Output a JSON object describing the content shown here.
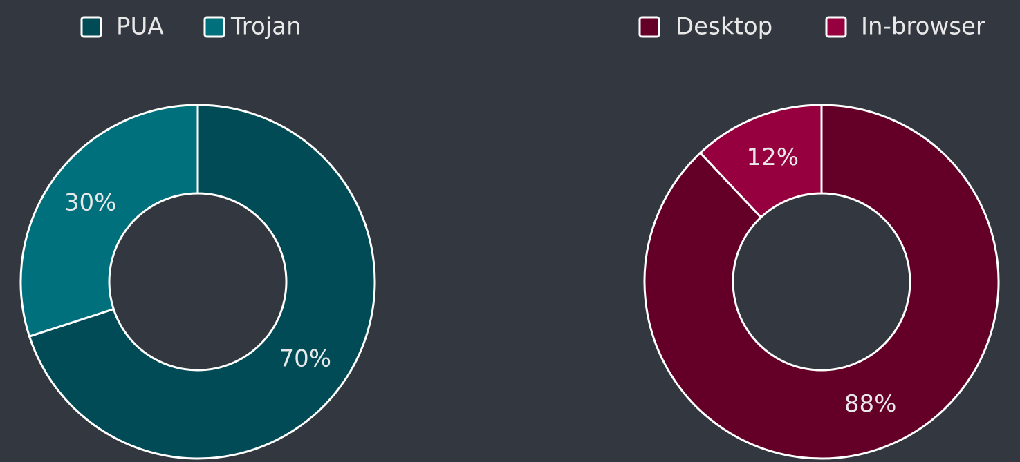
{
  "chart_data": [
    {
      "type": "pie",
      "donut": true,
      "categories": [
        "PUA",
        "Trojan"
      ],
      "values": [
        70,
        30
      ],
      "value_labels": [
        "70%",
        "30%"
      ],
      "colors": [
        "#004b56",
        "#00707c"
      ],
      "legend": "top"
    },
    {
      "type": "pie",
      "donut": true,
      "categories": [
        "Desktop",
        "In-browser"
      ],
      "values": [
        88,
        12
      ],
      "value_labels": [
        "88%",
        "12%"
      ],
      "colors": [
        "#640027",
        "#96003f"
      ],
      "legend": "top"
    }
  ]
}
